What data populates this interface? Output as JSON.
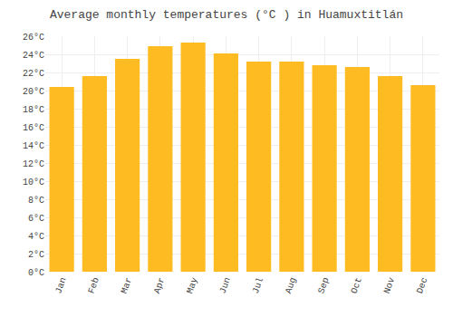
{
  "chart_data": {
    "type": "bar",
    "title": "Average monthly temperatures (°C ) in Huamuxtitlán",
    "categories": [
      "Jan",
      "Feb",
      "Mar",
      "Apr",
      "May",
      "Jun",
      "Jul",
      "Aug",
      "Sep",
      "Oct",
      "Nov",
      "Dec"
    ],
    "values": [
      20.4,
      21.6,
      23.5,
      24.9,
      25.3,
      24.1,
      23.2,
      23.2,
      22.8,
      22.6,
      21.6,
      20.6
    ],
    "color": "#FFBB22",
    "ylim": [
      0,
      26
    ],
    "yticks": [
      {
        "value": 0,
        "label": "0°C"
      },
      {
        "value": 2,
        "label": "2°C"
      },
      {
        "value": 4,
        "label": "4°C"
      },
      {
        "value": 6,
        "label": "6°C"
      },
      {
        "value": 8,
        "label": "8°C"
      },
      {
        "value": 10,
        "label": "10°C"
      },
      {
        "value": 12,
        "label": "12°C"
      },
      {
        "value": 14,
        "label": "14°C"
      },
      {
        "value": 16,
        "label": "16°C"
      },
      {
        "value": 18,
        "label": "18°C"
      },
      {
        "value": 20,
        "label": "20°C"
      },
      {
        "value": 22,
        "label": "22°C"
      },
      {
        "value": 24,
        "label": "24°C"
      },
      {
        "value": 26,
        "label": "26°C"
      }
    ],
    "grid": true
  }
}
